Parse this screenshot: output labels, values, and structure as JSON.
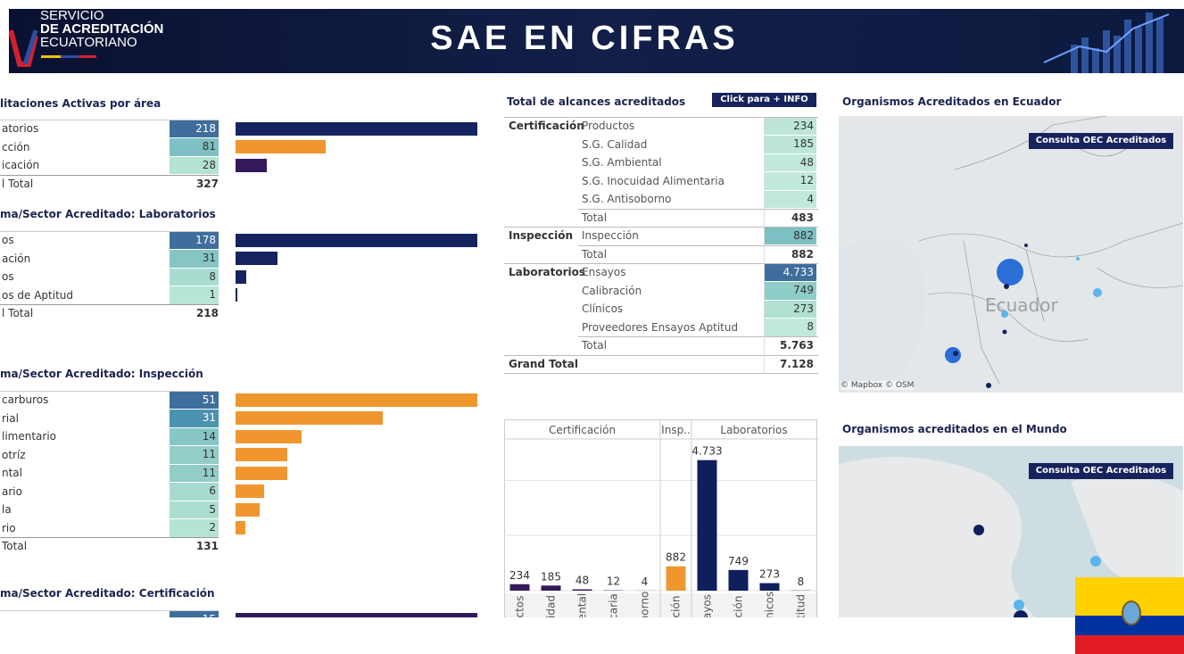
{
  "header": {
    "logo": [
      "SERVICIO",
      "DE ACREDITACIÓN",
      "ECUATORIANO"
    ],
    "title": "SAE EN CIFRAS"
  },
  "panels": [
    {
      "title": "litaciones Activas por área",
      "rows": [
        {
          "label": "atorios",
          "value": 218,
          "cell_color": "#3f6e9d",
          "color": "#15245e"
        },
        {
          "label": "cción",
          "value": 81,
          "cell_color": "#7ec0c3",
          "color": "#f0962e"
        },
        {
          "label": "icación",
          "value": 28,
          "cell_color": "#b4e3d3",
          "color": "#33195c"
        }
      ],
      "total": {
        "label": "l Total",
        "value": 327
      }
    },
    {
      "title": "ma/Sector Acreditado: Laboratorios",
      "rows": [
        {
          "label": "os",
          "value": 178,
          "cell_color": "#3f6e9d",
          "color": "#15245e"
        },
        {
          "label": "ación",
          "value": 31,
          "cell_color": "#85c6c5",
          "color": "#15245e"
        },
        {
          "label": "os",
          "value": 8,
          "cell_color": "#a9dcd0",
          "color": "#15245e"
        },
        {
          "label": "os de Aptitud",
          "value": 1,
          "cell_color": "#b8e6d6",
          "color": "#15245e"
        }
      ],
      "total": {
        "label": "l Total",
        "value": 218
      }
    },
    {
      "title": "ma/Sector Acreditado: Inspección",
      "rows": [
        {
          "label": "carburos",
          "value": 51,
          "cell_color": "#3f6e9d",
          "color": "#f0962e"
        },
        {
          "label": "rial",
          "value": 31,
          "cell_color": "#4b93b0",
          "color": "#f0962e"
        },
        {
          "label": "limentario",
          "value": 14,
          "cell_color": "#86c6c5",
          "color": "#f0962e"
        },
        {
          "label": "otríz",
          "value": 11,
          "cell_color": "#92cdc8",
          "color": "#f0962e"
        },
        {
          "label": "ntal",
          "value": 11,
          "cell_color": "#92cdc8",
          "color": "#f0962e"
        },
        {
          "label": "ario",
          "value": 6,
          "cell_color": "#a8dbcf",
          "color": "#f0962e"
        },
        {
          "label": "la",
          "value": 5,
          "cell_color": "#abddd0",
          "color": "#f0962e"
        },
        {
          "label": "rio",
          "value": 2,
          "cell_color": "#b6e4d4",
          "color": "#f0962e"
        }
      ],
      "total": {
        "label": "Total",
        "value": 131
      }
    },
    {
      "title": "ma/Sector Acreditado: Certificación",
      "rows": [
        {
          "value": 15,
          "cell_color": "#3f6e9d",
          "color": "#33195c"
        }
      ]
    }
  ],
  "scopes": {
    "title": "Total de alcances acreditados",
    "button": "Click para + INFO",
    "groups": [
      {
        "name": "Certificación",
        "rows": [
          {
            "label": "Productos",
            "value": "234",
            "cell_color": "#bde6d8"
          },
          {
            "label": "S.G. Calidad",
            "value": "185",
            "cell_color": "#bde6d8"
          },
          {
            "label": "S.G. Ambiental",
            "value": "48",
            "cell_color": "#c1e9db"
          },
          {
            "label": "S.G. Inocuidad Alimentaria",
            "value": "12",
            "cell_color": "#c1e9db"
          },
          {
            "label": "S.G. Antisoborno",
            "value": "4",
            "cell_color": "#c1e9db"
          }
        ],
        "total": {
          "label": "Total",
          "value": "483"
        }
      },
      {
        "name": "Inspección",
        "rows": [
          {
            "label": "Inspección",
            "value": "882",
            "cell_color": "#7cc0c4"
          }
        ],
        "total": {
          "label": "Total",
          "value": "882"
        }
      },
      {
        "name": "Laboratorios",
        "rows": [
          {
            "label": "Ensayos",
            "value": "4.733",
            "cell_color": "#3f6e9d"
          },
          {
            "label": "Calibración",
            "value": "749",
            "cell_color": "#8fcdc8"
          },
          {
            "label": "Clínicos",
            "value": "273",
            "cell_color": "#b0e0d2"
          },
          {
            "label": "Proveedores Ensayos Aptitud",
            "value": "8",
            "cell_color": "#c1e9db"
          }
        ],
        "total": {
          "label": "Total",
          "value": "5.763"
        }
      }
    ],
    "grand_total": {
      "label": "Grand Total",
      "value": "7.128"
    }
  },
  "chart_data": {
    "type": "bar",
    "ylim": [
      0,
      5500
    ],
    "yticks": [
      0,
      2000,
      4000
    ],
    "grid": true,
    "groups": [
      {
        "name": "Certificación",
        "color": "#33195c",
        "categories": [
          "ctos",
          "idad",
          "ental",
          "caria",
          "borno"
        ],
        "values": [
          234,
          185,
          48,
          12,
          4
        ]
      },
      {
        "name": "Insp..",
        "color": "#f0962e",
        "categories": [
          "ción"
        ],
        "values": [
          882
        ]
      },
      {
        "name": "Laboratorios",
        "color": "#0f1f5c",
        "categories": [
          "ayos",
          "ción",
          "ínicos",
          "titud"
        ],
        "values": [
          4733,
          749,
          273,
          8
        ],
        "value_labels": [
          "4.733",
          "749",
          "273",
          "8"
        ]
      }
    ]
  },
  "maps": [
    {
      "title": "Organismos Acreditados en Ecuador",
      "button": "Consulta OEC Acreditados",
      "labels": [
        "Ecuador"
      ],
      "attribution": "© Mapbox © OSM"
    },
    {
      "title": "Organismos acreditados en el Mundo",
      "button": "Consulta OEC Acreditados"
    }
  ]
}
